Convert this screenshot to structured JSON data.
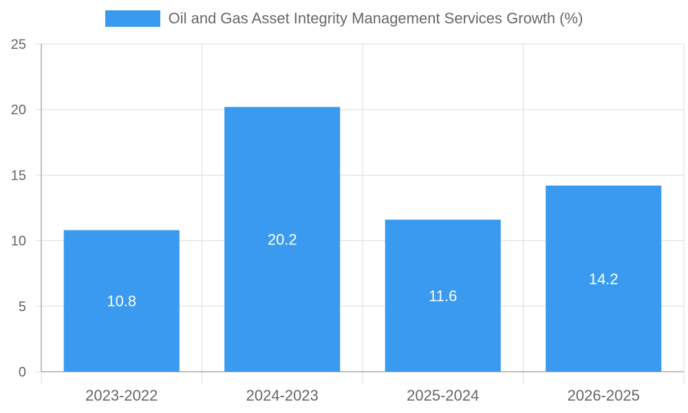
{
  "chart_data": {
    "type": "bar",
    "categories": [
      "2023-2022",
      "2024-2023",
      "2025-2024",
      "2026-2025"
    ],
    "series": [
      {
        "name": "Oil and Gas Asset Integrity Management Services Growth (%)",
        "values": [
          10.8,
          20.2,
          11.6,
          14.2
        ]
      }
    ],
    "data_labels": [
      "10.8",
      "20.2",
      "11.6",
      "14.2"
    ],
    "ylim": [
      0,
      25
    ],
    "yticks": [
      0,
      5,
      10,
      15,
      20,
      25
    ],
    "grid": true,
    "legend_position": "top-center",
    "xlabel": "",
    "ylabel": ""
  },
  "colors": {
    "bar": "#3a9af0",
    "grid": "#dddddd",
    "axis": "#aaaaaa",
    "tick_text": "#666666",
    "label_text": "#ffffff"
  }
}
